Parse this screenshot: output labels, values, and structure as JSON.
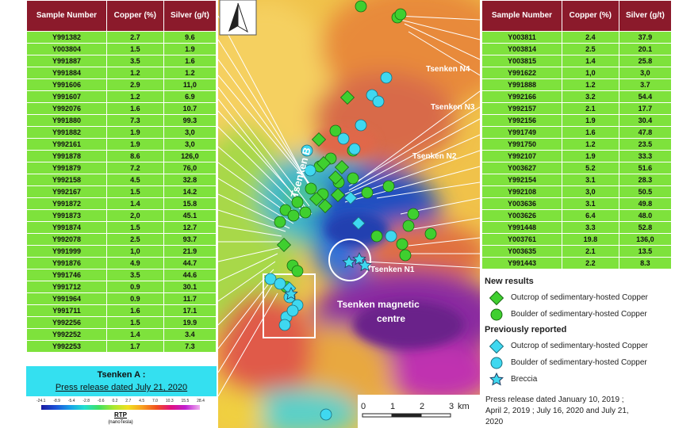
{
  "left_table": {
    "headers": [
      "Sample Number",
      "Copper (%)",
      "Silver (g/t)"
    ],
    "rows": [
      [
        "Y991382",
        "2.7",
        "9.6"
      ],
      [
        "Y003804",
        "1.5",
        "1.9"
      ],
      [
        "Y991887",
        "3.5",
        "1.6"
      ],
      [
        "Y991884",
        "1.2",
        "1.2"
      ],
      [
        "Y991606",
        "2.9",
        "11,0"
      ],
      [
        "Y991607",
        "1.2",
        "6.9"
      ],
      [
        "Y992076",
        "1.6",
        "10.7"
      ],
      [
        "Y991880",
        "7.3",
        "99.3"
      ],
      [
        "Y991882",
        "1.9",
        "3,0"
      ],
      [
        "Y992161",
        "1.9",
        "3,0"
      ],
      [
        "Y991878",
        "8.6",
        "126,0"
      ],
      [
        "Y991879",
        "7.2",
        "76,0"
      ],
      [
        "Y992158",
        "4.5",
        "32.8"
      ],
      [
        "Y992167",
        "1.5",
        "14.2"
      ],
      [
        "Y991872",
        "1.4",
        "15.8"
      ],
      [
        "Y991873",
        "2,0",
        "45.1"
      ],
      [
        "Y991874",
        "1.5",
        "12.7"
      ],
      [
        "Y992078",
        "2.5",
        "93.7"
      ],
      [
        "Y991999",
        "1,0",
        "21.9"
      ],
      [
        "Y991876",
        "4.9",
        "44.7"
      ],
      [
        "Y991746",
        "3.5",
        "44.6"
      ],
      [
        "Y991712",
        "0.9",
        "30.1"
      ],
      [
        "Y991964",
        "0.9",
        "11.7"
      ],
      [
        "Y991711",
        "1.6",
        "17.1"
      ],
      [
        "Y992256",
        "1.5",
        "19.9"
      ],
      [
        "Y992252",
        "1.4",
        "3.4"
      ],
      [
        "Y992253",
        "1.7",
        "7.3"
      ]
    ]
  },
  "right_table": {
    "headers": [
      "Sample Number",
      "Copper (%)",
      "Silver (g/t)"
    ],
    "rows": [
      [
        "Y003811",
        "2.4",
        "37.9"
      ],
      [
        "Y003814",
        "2.5",
        "20.1"
      ],
      [
        "Y003815",
        "1.4",
        "25.8"
      ],
      [
        "Y991622",
        "1,0",
        "3,0"
      ],
      [
        "Y991888",
        "1.2",
        "3.7"
      ],
      [
        "Y992166",
        "3.2",
        "54.4"
      ],
      [
        "Y992157",
        "2.1",
        "17.7"
      ],
      [
        "Y992156",
        "1.9",
        "30.4"
      ],
      [
        "Y991749",
        "1.6",
        "47.8"
      ],
      [
        "Y991750",
        "1.2",
        "23.5"
      ],
      [
        "Y992107",
        "1.9",
        "33.3"
      ],
      [
        "Y003627",
        "5.2",
        "51.6"
      ],
      [
        "Y992154",
        "3.1",
        "28.3"
      ],
      [
        "Y992108",
        "3,0",
        "50.5"
      ],
      [
        "Y003636",
        "3.1",
        "49.8"
      ],
      [
        "Y003626",
        "6.4",
        "48.0"
      ],
      [
        "Y991448",
        "3.3",
        "52.8"
      ],
      [
        "Y003761",
        "19.8",
        "136,0"
      ],
      [
        "Y003635",
        "2.1",
        "13.5"
      ],
      [
        "Y991443",
        "2.2",
        "8.3"
      ]
    ]
  },
  "tsenken_a": {
    "title": "Tsenken A :",
    "press": "Press release dated July 21, 2020"
  },
  "rtp": {
    "ticks": [
      "-24.1",
      "-8.9",
      "-5.4",
      "-2.8",
      "-0.6",
      "0.2",
      "2.7",
      "4.5",
      "7.0",
      "10.3",
      "15.5",
      "28.4"
    ],
    "label": "RTP",
    "unit": "(nanoTesla)"
  },
  "map_labels": {
    "tsenken_b": "Tsenken B",
    "n4": "Tsenken N4",
    "n3": "Tsenken N3",
    "n2": "Tsenken N2",
    "n1": "Tsenken N1",
    "magnetic_1": "Tsenken magnetic",
    "magnetic_2": "centre",
    "north": "N"
  },
  "scale": {
    "ticks": [
      "0",
      "1",
      "2",
      "3"
    ],
    "unit": "km"
  },
  "legend": {
    "new_results": "New results",
    "new_outcrop": "Outcrop of sedimentary-hosted Copper",
    "new_boulder": "Boulder of sedimentary-hosted Copper",
    "previously_reported": "Previously reported",
    "prev_outcrop": "Outcrop of sedimentary-hosted Copper",
    "prev_boulder": "Boulder of sedimentary-hosted Copper",
    "breccia": "Breccia",
    "press_line1": "Press release dated January 10, 2019 ;",
    "press_line2": "April 2, 2019 ; July 16, 2020 and July 21,",
    "press_line3": "2020"
  },
  "colors": {
    "table_header": "#8b1a2b",
    "table_row": "#7ee23c",
    "tsenken_a_box": "#34e0f0",
    "new_symbol": "#3fcf2f",
    "prev_symbol": "#3fd8f0"
  }
}
